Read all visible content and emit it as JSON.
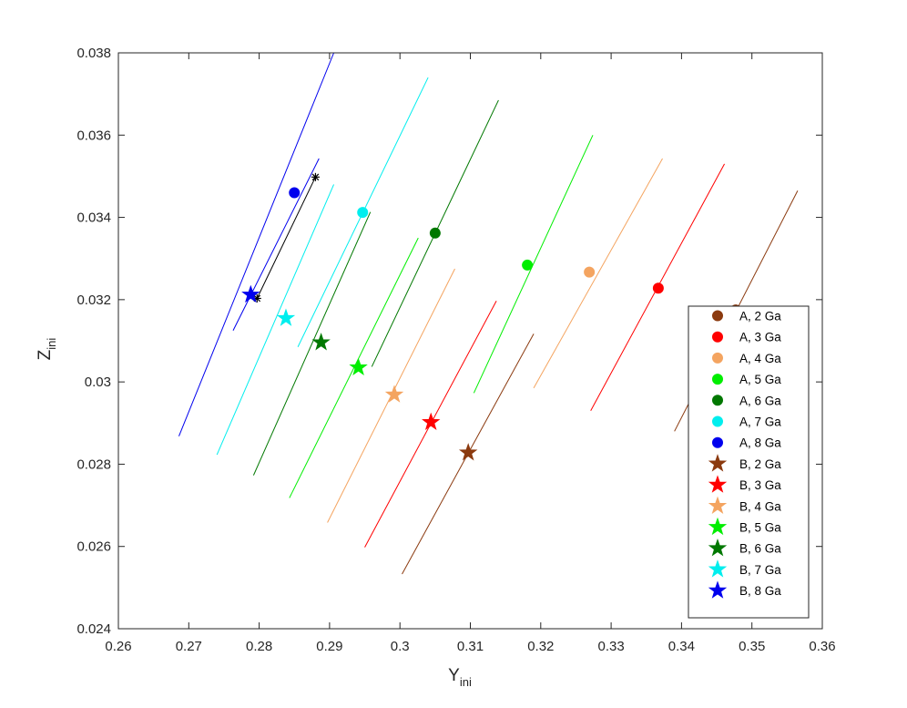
{
  "chart_data": {
    "type": "scatter",
    "xlabel": "Y",
    "xlabel_sub": "ini",
    "ylabel": "Z",
    "ylabel_sub": "ini",
    "xlim": [
      0.26,
      0.36
    ],
    "ylim": [
      0.024,
      0.038
    ],
    "xticks": [
      "0.26",
      "0.27",
      "0.28",
      "0.29",
      "0.3",
      "0.31",
      "0.32",
      "0.33",
      "0.34",
      "0.35",
      "0.36"
    ],
    "yticks": [
      "0.024",
      "0.026",
      "0.028",
      "0.03",
      "0.032",
      "0.034",
      "0.036",
      "0.038"
    ],
    "grid": false,
    "legend_position": "bottom-right",
    "colors": {
      "2 Ga": "#8B3A0F",
      "3 Ga": "#FF0000",
      "4 Ga": "#F4A460",
      "5 Ga": "#00EE00",
      "6 Ga": "#007800",
      "7 Ga": "#00EEEE",
      "8 Ga": "#0000EE",
      "other": "#000000"
    },
    "series": [
      {
        "name": "A, 2 Ga",
        "marker": "circle",
        "color": "#8B3A0F",
        "x": 0.3477,
        "y": 0.03175,
        "line": [
          [
            0.339,
            0.0288
          ],
          [
            0.3565,
            0.03465
          ]
        ]
      },
      {
        "name": "A, 3 Ga",
        "marker": "circle",
        "color": "#FF0000",
        "x": 0.3367,
        "y": 0.03228,
        "line": [
          [
            0.3271,
            0.0293
          ],
          [
            0.3461,
            0.0353
          ]
        ]
      },
      {
        "name": "A, 4 Ga",
        "marker": "circle",
        "color": "#F4A460",
        "x": 0.3269,
        "y": 0.03267,
        "line": [
          [
            0.319,
            0.02985
          ],
          [
            0.3373,
            0.03543
          ]
        ]
      },
      {
        "name": "A, 5 Ga",
        "marker": "circle",
        "color": "#00EE00",
        "x": 0.3181,
        "y": 0.03284,
        "line": [
          [
            0.3105,
            0.02973
          ],
          [
            0.3274,
            0.036
          ]
        ]
      },
      {
        "name": "A, 6 Ga",
        "marker": "circle",
        "color": "#007800",
        "x": 0.305,
        "y": 0.03362,
        "line": [
          [
            0.296,
            0.03037
          ],
          [
            0.314,
            0.03685
          ]
        ]
      },
      {
        "name": "A, 7 Ga",
        "marker": "circle",
        "color": "#00EEEE",
        "x": 0.2947,
        "y": 0.03412,
        "line": [
          [
            0.2855,
            0.03085
          ],
          [
            0.304,
            0.0374
          ]
        ]
      },
      {
        "name": "A, 8 Ga",
        "marker": "circle",
        "color": "#0000EE",
        "x": 0.285,
        "y": 0.0346,
        "line": [
          [
            0.2763,
            0.03125
          ],
          [
            0.2885,
            0.03543
          ]
        ]
      },
      {
        "name": "B, 2 Ga",
        "marker": "star",
        "color": "#8B3A0F",
        "x": 0.3097,
        "y": 0.02828,
        "line": [
          [
            0.3003,
            0.02533
          ],
          [
            0.319,
            0.03117
          ]
        ]
      },
      {
        "name": "B, 3 Ga",
        "marker": "star",
        "color": "#FF0000",
        "x": 0.3044,
        "y": 0.02902,
        "line": [
          [
            0.295,
            0.02598
          ],
          [
            0.3137,
            0.03197
          ]
        ]
      },
      {
        "name": "B, 4 Ga",
        "marker": "star",
        "color": "#F4A460",
        "x": 0.2992,
        "y": 0.02969,
        "line": [
          [
            0.2897,
            0.02658
          ],
          [
            0.3078,
            0.03275
          ]
        ]
      },
      {
        "name": "B, 5 Ga",
        "marker": "star",
        "color": "#00EE00",
        "x": 0.2941,
        "y": 0.03035,
        "line": [
          [
            0.2843,
            0.02718
          ],
          [
            0.3026,
            0.0335
          ]
        ]
      },
      {
        "name": "B, 6 Ga",
        "marker": "star",
        "color": "#007800",
        "x": 0.2888,
        "y": 0.03096,
        "line": [
          [
            0.2792,
            0.02773
          ],
          [
            0.2958,
            0.03413
          ]
        ]
      },
      {
        "name": "B, 7 Ga",
        "marker": "star",
        "color": "#00EEEE",
        "x": 0.2838,
        "y": 0.03155,
        "line": [
          [
            0.274,
            0.02823
          ],
          [
            0.2906,
            0.0348
          ]
        ]
      },
      {
        "name": "B, 8 Ga",
        "marker": "star",
        "color": "#0000EE",
        "x": 0.2788,
        "y": 0.03212,
        "line": [
          [
            0.2686,
            0.02868
          ],
          [
            0.2906,
            0.038
          ]
        ]
      }
    ],
    "extra": {
      "color": "#000000",
      "marker": "asterisk",
      "line": [
        [
          0.2797,
          0.03203
        ],
        [
          0.288,
          0.03498
        ]
      ]
    }
  }
}
